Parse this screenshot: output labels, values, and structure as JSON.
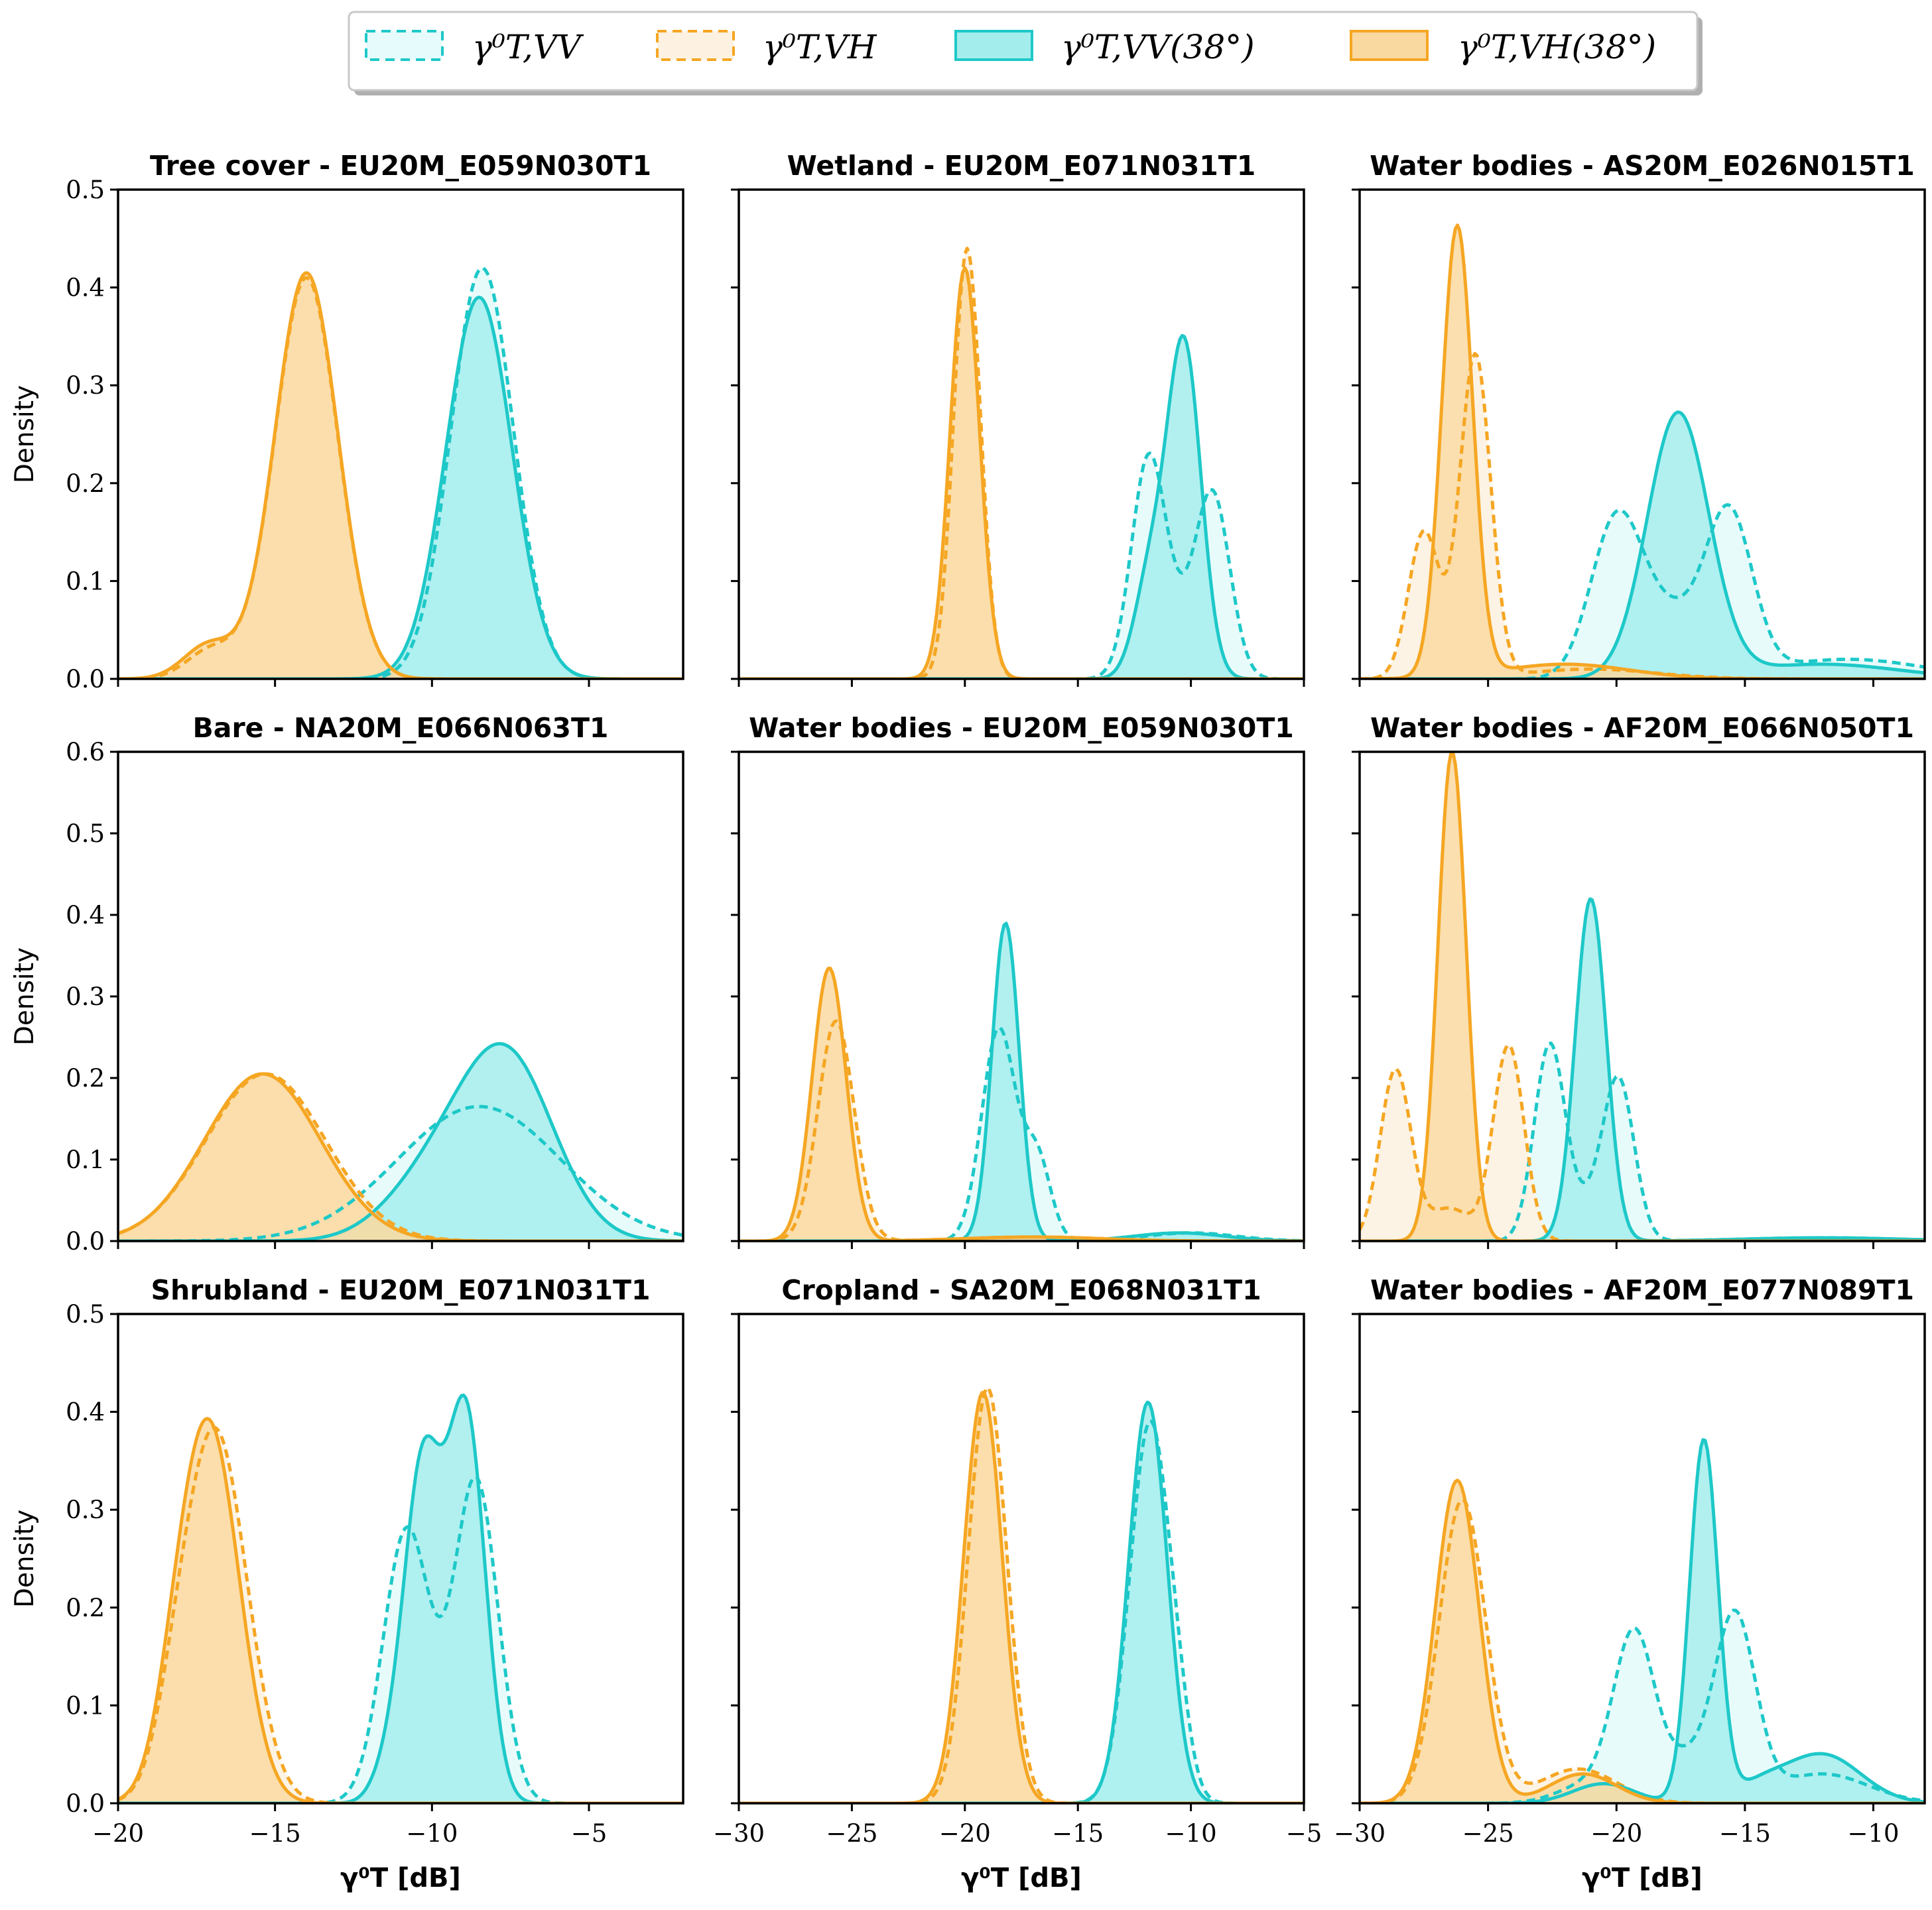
{
  "colors": {
    "vv": "#1ec8c8",
    "vh": "#f5a623",
    "vv_fill_dashed": "#e6fbfb",
    "vh_fill_dashed": "#fdf2e1",
    "vv_fill_solid": "#a4eded",
    "vh_fill_solid": "#fad9a1"
  },
  "legend": {
    "items": [
      {
        "label": "γ⁰T,VV",
        "style": "dashed",
        "color": "vv"
      },
      {
        "label": "γ⁰T,VH",
        "style": "dashed",
        "color": "vh"
      },
      {
        "label": "γ⁰T,VV(38°)",
        "style": "solid",
        "color": "vv"
      },
      {
        "label": "γ⁰T,VH(38°)",
        "style": "solid",
        "color": "vh"
      }
    ]
  },
  "chart_data": [
    {
      "type": "area",
      "title": "Tree cover - EU20M_E059N030T1",
      "ylabel": "Density",
      "xlabel": "",
      "xlim": [
        -20,
        -2
      ],
      "ylim": [
        0,
        0.5
      ],
      "xticks": [
        "",
        "",
        "",
        ""
      ],
      "yticks": [
        "0.0",
        "0.1",
        "0.2",
        "0.3",
        "0.4",
        "0.5"
      ],
      "series": [
        {
          "name": "VV",
          "peaks": [
            [
              -8.4,
              0.42,
              1.0
            ]
          ],
          "base": 0
        },
        {
          "name": "VH",
          "peaks": [
            [
              -14.0,
              0.41,
              1.0
            ],
            [
              -17.0,
              0.03,
              0.8
            ]
          ],
          "base": 0
        },
        {
          "name": "VV(38°)",
          "peaks": [
            [
              -8.5,
              0.39,
              1.05
            ]
          ],
          "base": 0
        },
        {
          "name": "VH(38°)",
          "peaks": [
            [
              -14.0,
              0.415,
              1.0
            ],
            [
              -17.1,
              0.035,
              0.8
            ]
          ],
          "base": 0
        }
      ]
    },
    {
      "type": "area",
      "title": "Wetland - EU20M_E071N031T1",
      "ylabel": "",
      "xlabel": "",
      "xlim": [
        -30,
        -5
      ],
      "ylim": [
        0,
        0.5
      ],
      "xticks": [],
      "yticks": [],
      "series": [
        {
          "name": "VV",
          "peaks": [
            [
              -11.9,
              0.21,
              0.75
            ],
            [
              -9.0,
              0.17,
              0.75
            ],
            [
              -10.4,
              0.05,
              1.1
            ]
          ],
          "base": 0
        },
        {
          "name": "VH",
          "peaks": [
            [
              -19.9,
              0.44,
              0.6
            ]
          ],
          "base": 0
        },
        {
          "name": "VV(38°)",
          "peaks": [
            [
              -10.3,
              0.34,
              0.75
            ],
            [
              -11.8,
              0.1,
              0.7
            ]
          ],
          "base": 0
        },
        {
          "name": "VH(38°)",
          "peaks": [
            [
              -20.0,
              0.42,
              0.65
            ]
          ],
          "base": 0
        }
      ]
    },
    {
      "type": "area",
      "title": "Water bodies - AS20M_E026N015T1",
      "ylabel": "",
      "xlabel": "",
      "xlim": [
        -30,
        -8
      ],
      "ylim": [
        0,
        0.5
      ],
      "xticks": [],
      "yticks": [],
      "series": [
        {
          "name": "VV",
          "peaks": [
            [
              -20.0,
              0.16,
              1.0
            ],
            [
              -15.6,
              0.16,
              0.9
            ],
            [
              -17.8,
              0.06,
              1.2
            ],
            [
              -11.0,
              0.02,
              3.0
            ]
          ],
          "base": 0
        },
        {
          "name": "VH",
          "peaks": [
            [
              -25.5,
              0.33,
              0.6
            ],
            [
              -27.5,
              0.15,
              0.6
            ],
            [
              -21.0,
              0.01,
              2.5
            ]
          ],
          "base": 0
        },
        {
          "name": "VV(38°)",
          "peaks": [
            [
              -17.6,
              0.27,
              1.2
            ],
            [
              -12.0,
              0.015,
              3.0
            ]
          ],
          "base": 0
        },
        {
          "name": "VH(38°)",
          "peaks": [
            [
              -26.2,
              0.46,
              0.6
            ],
            [
              -22.0,
              0.015,
              2.5
            ]
          ],
          "base": 0
        }
      ]
    },
    {
      "type": "area",
      "title": "Bare - NA20M_E066N063T1",
      "ylabel": "Density",
      "xlabel": "",
      "xlim": [
        -20,
        -2
      ],
      "ylim": [
        0,
        0.6
      ],
      "xticks": [
        "",
        "",
        "",
        ""
      ],
      "yticks": [
        "0.0",
        "0.1",
        "0.2",
        "0.3",
        "0.4",
        "0.5",
        "0.6"
      ],
      "series": [
        {
          "name": "VV",
          "peaks": [
            [
              -8.5,
              0.165,
              2.6
            ]
          ],
          "base": 0
        },
        {
          "name": "VH",
          "peaks": [
            [
              -15.3,
              0.205,
              1.9
            ]
          ],
          "base": 0
        },
        {
          "name": "VV(38°)",
          "peaks": [
            [
              -7.6,
              0.22,
              1.5
            ],
            [
              -10.0,
              0.07,
              1.5
            ]
          ],
          "base": 0
        },
        {
          "name": "VH(38°)",
          "peaks": [
            [
              -15.4,
              0.205,
              1.85
            ]
          ],
          "base": 0
        }
      ]
    },
    {
      "type": "area",
      "title": "Water bodies - EU20M_E059N030T1",
      "ylabel": "",
      "xlabel": "",
      "xlim": [
        -30,
        -5
      ],
      "ylim": [
        0,
        0.6
      ],
      "xticks": [],
      "yticks": [],
      "series": [
        {
          "name": "VV",
          "peaks": [
            [
              -18.5,
              0.26,
              0.75
            ],
            [
              -16.8,
              0.1,
              0.6
            ],
            [
              -10.0,
              0.01,
              2.0
            ]
          ],
          "base": 0
        },
        {
          "name": "VH",
          "peaks": [
            [
              -25.7,
              0.27,
              0.8
            ],
            [
              -17.0,
              0.005,
              3.0
            ]
          ],
          "base": 0
        },
        {
          "name": "VV(38°)",
          "peaks": [
            [
              -18.2,
              0.39,
              0.6
            ],
            [
              -10.5,
              0.01,
              2.0
            ]
          ],
          "base": 0
        },
        {
          "name": "VH(38°)",
          "peaks": [
            [
              -26.0,
              0.335,
              0.75
            ],
            [
              -17.0,
              0.005,
              3.0
            ]
          ],
          "base": 0
        }
      ]
    },
    {
      "type": "area",
      "title": "Water bodies - AF20M_E066N050T1",
      "ylabel": "",
      "xlabel": "",
      "xlim": [
        -30,
        -8
      ],
      "ylim": [
        0,
        0.6
      ],
      "xticks": [],
      "yticks": [],
      "series": [
        {
          "name": "VV",
          "peaks": [
            [
              -22.6,
              0.24,
              0.6
            ],
            [
              -19.9,
              0.19,
              0.6
            ],
            [
              -21.0,
              0.04,
              0.7
            ],
            [
              -12.0,
              0.004,
              3.0
            ]
          ],
          "base": 0
        },
        {
          "name": "VH",
          "peaks": [
            [
              -28.6,
              0.21,
              0.6
            ],
            [
              -24.2,
              0.24,
              0.6
            ],
            [
              -26.5,
              0.04,
              0.8
            ]
          ],
          "base": 0
        },
        {
          "name": "VV(38°)",
          "peaks": [
            [
              -21.0,
              0.42,
              0.6
            ],
            [
              -12.0,
              0.004,
              3.0
            ]
          ],
          "base": 0
        },
        {
          "name": "VH(38°)",
          "peaks": [
            [
              -26.4,
              0.6,
              0.55
            ]
          ],
          "base": 0
        }
      ]
    },
    {
      "type": "area",
      "title": "Shrubland - EU20M_E071N031T1",
      "ylabel": "Density",
      "xlabel": "γ⁰T [dB]",
      "xlim": [
        -20,
        -2
      ],
      "ylim": [
        0,
        0.5
      ],
      "xticks": [
        "−20",
        "−15",
        "−10",
        "−5"
      ],
      "yticks": [
        "0.0",
        "0.1",
        "0.2",
        "0.3",
        "0.4",
        "0.5"
      ],
      "series": [
        {
          "name": "VV",
          "peaks": [
            [
              -10.8,
              0.28,
              0.75
            ],
            [
              -8.6,
              0.33,
              0.7
            ]
          ],
          "base": 0
        },
        {
          "name": "VH",
          "peaks": [
            [
              -16.9,
              0.38,
              1.0
            ],
            [
              -18.2,
              0.04,
              0.6
            ]
          ],
          "base": 0
        },
        {
          "name": "VV(38°)",
          "peaks": [
            [
              -10.3,
              0.34,
              0.6
            ],
            [
              -8.9,
              0.39,
              0.6
            ],
            [
              -11.4,
              0.03,
              0.5
            ]
          ],
          "base": 0
        },
        {
          "name": "VH(38°)",
          "peaks": [
            [
              -17.1,
              0.385,
              0.95
            ],
            [
              -18.2,
              0.04,
              0.6
            ]
          ],
          "base": 0
        }
      ]
    },
    {
      "type": "area",
      "title": "Cropland - SA20M_E068N031T1",
      "ylabel": "",
      "xlabel": "γ⁰T [dB]",
      "xlim": [
        -30,
        -5
      ],
      "ylim": [
        0,
        0.5
      ],
      "xticks": [
        "−30",
        "−25",
        "−20",
        "−15",
        "−10",
        "−5"
      ],
      "yticks": [],
      "series": [
        {
          "name": "VV",
          "peaks": [
            [
              -11.8,
              0.39,
              0.9
            ],
            [
              -10.5,
              0.03,
              0.5
            ]
          ],
          "base": 0
        },
        {
          "name": "VH",
          "peaks": [
            [
              -19.0,
              0.425,
              0.85
            ]
          ],
          "base": 0
        },
        {
          "name": "VV(38°)",
          "peaks": [
            [
              -11.9,
              0.41,
              0.85
            ]
          ],
          "base": 0
        },
        {
          "name": "VH(38°)",
          "peaks": [
            [
              -19.2,
              0.42,
              0.85
            ]
          ],
          "base": 0
        }
      ]
    },
    {
      "type": "area",
      "title": "Water bodies - AF20M_E077N089T1",
      "ylabel": "",
      "xlabel": "γ⁰T [dB]",
      "xlim": [
        -30,
        -8
      ],
      "ylim": [
        0,
        0.5
      ],
      "xticks": [
        "−30",
        "−25",
        "−20",
        "−15",
        "−10"
      ],
      "yticks": [],
      "series": [
        {
          "name": "VV",
          "peaks": [
            [
              -19.3,
              0.17,
              0.8
            ],
            [
              -15.4,
              0.19,
              0.8
            ],
            [
              -21.0,
              0.02,
              1.2
            ],
            [
              -12.0,
              0.03,
              1.8
            ],
            [
              -17.3,
              0.04,
              0.8
            ]
          ],
          "base": 0
        },
        {
          "name": "VH",
          "peaks": [
            [
              -26.0,
              0.31,
              0.9
            ],
            [
              -21.5,
              0.035,
              1.5
            ]
          ],
          "base": 0
        },
        {
          "name": "VV(38°)",
          "peaks": [
            [
              -16.6,
              0.37,
              0.55
            ],
            [
              -12.0,
              0.05,
              1.5
            ],
            [
              -20.5,
              0.02,
              1.2
            ],
            [
              -14.5,
              0.015,
              1.0
            ]
          ],
          "base": 0
        },
        {
          "name": "VH(38°)",
          "peaks": [
            [
              -26.2,
              0.33,
              0.85
            ],
            [
              -21.3,
              0.03,
              1.3
            ]
          ],
          "base": 0
        }
      ]
    }
  ]
}
